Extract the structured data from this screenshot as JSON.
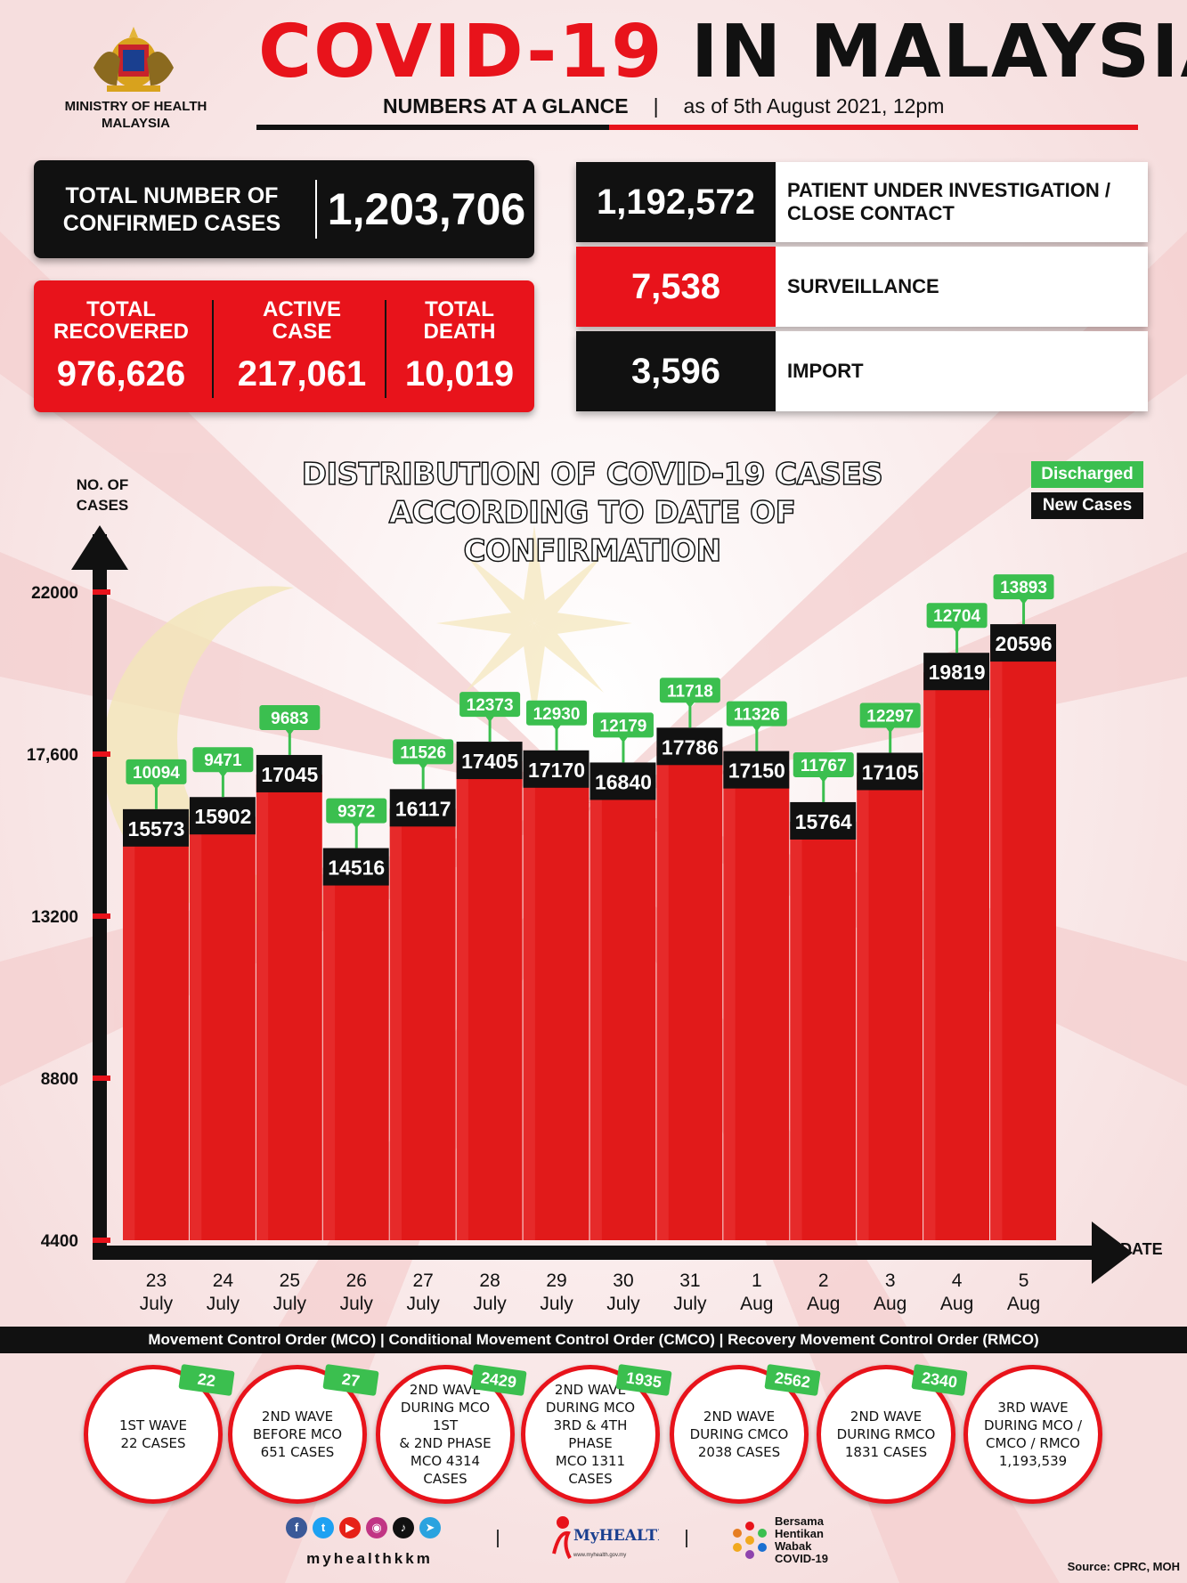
{
  "header": {
    "ministry": "MINISTRY OF HEALTH\nMALAYSIA",
    "title_red": "COVID-19",
    "title_black": "IN MALAYSIA",
    "subtitle_bold": "NUMBERS AT A GLANCE",
    "subtitle_sep": "|",
    "subtitle_date": "as of 5th August 2021, 12pm"
  },
  "stats": {
    "total_label": "TOTAL NUMBER OF\nCONFIRMED CASES",
    "total_value": "1,203,706",
    "recovered_label": "TOTAL\nRECOVERED",
    "recovered_value": "976,626",
    "active_label": "ACTIVE\nCASE",
    "active_value": "217,061",
    "death_label": "TOTAL\nDEATH",
    "death_value": "10,019",
    "pui_value": "1,192,572",
    "pui_label": "PATIENT UNDER INVESTIGATION /\nCLOSE CONTACT",
    "surveillance_value": "7,538",
    "surveillance_label": "SURVEILLANCE",
    "import_value": "3,596",
    "import_label": "IMPORT"
  },
  "colors": {
    "red": "#e8131b",
    "black": "#111111",
    "green": "#3bbf4f",
    "bar_red": "#e11a1a"
  },
  "chart_data": {
    "type": "bar",
    "title": "DISTRIBUTION OF COVID-19 CASES\nACCORDING TO DATE OF CONFIRMATION",
    "ylabel": "NO. OF\nCASES",
    "xlabel": "DATE",
    "yticks": [
      "22000",
      "17,600",
      "13200",
      "8800",
      "4400"
    ],
    "ylim": [
      4400,
      22000
    ],
    "categories": [
      [
        "23",
        "July"
      ],
      [
        "24",
        "July"
      ],
      [
        "25",
        "July"
      ],
      [
        "26",
        "July"
      ],
      [
        "27",
        "July"
      ],
      [
        "28",
        "July"
      ],
      [
        "29",
        "July"
      ],
      [
        "30",
        "July"
      ],
      [
        "31",
        "July"
      ],
      [
        "1",
        "Aug"
      ],
      [
        "2",
        "Aug"
      ],
      [
        "3",
        "Aug"
      ],
      [
        "4",
        "Aug"
      ],
      [
        "5",
        "Aug"
      ]
    ],
    "series": [
      {
        "name": "New Cases",
        "values": [
          15573,
          15902,
          17045,
          14516,
          16117,
          17405,
          17170,
          16840,
          17786,
          17150,
          15764,
          17105,
          19819,
          20596
        ]
      },
      {
        "name": "Discharged",
        "values": [
          10094,
          9471,
          9683,
          9372,
          11526,
          12373,
          12930,
          12179,
          11718,
          11326,
          11767,
          12297,
          12704,
          13893
        ]
      }
    ],
    "legend": [
      "Discharged",
      "New Cases"
    ],
    "legend_position": "top-right"
  },
  "footer": {
    "mco_bar": "Movement Control Order (MCO) | Conditional Movement Control Order (CMCO) | Recovery Movement Control Order (RMCO)",
    "waves": [
      {
        "text": "1ST WAVE\n22 CASES",
        "tag": "22"
      },
      {
        "text": "2ND WAVE\nBEFORE MCO\n651 CASES",
        "tag": "27"
      },
      {
        "text": "2ND WAVE\nDURING MCO 1ST\n& 2ND PHASE\nMCO 4314\nCASES",
        "tag": "2429"
      },
      {
        "text": "2ND WAVE\nDURING MCO\n3RD & 4TH PHASE\nMCO 1311\nCASES",
        "tag": "1935"
      },
      {
        "text": "2ND WAVE\nDURING CMCO\n2038 CASES",
        "tag": "2562"
      },
      {
        "text": "2ND WAVE\nDURING RMCO\n1831 CASES",
        "tag": "2340"
      },
      {
        "text": "3RD WAVE\nDURING MCO /\nCMCO / RMCO\n1,193,539",
        "tag": ""
      }
    ],
    "handle": "myhealthkkm",
    "myhealth": "MyHEALTH",
    "myhealth_url": "www.myhealth.gov.my",
    "bersama": "Bersama\nHentikan\nWabak\nCOVID-19",
    "source": "Source: CPRC, MOH"
  }
}
